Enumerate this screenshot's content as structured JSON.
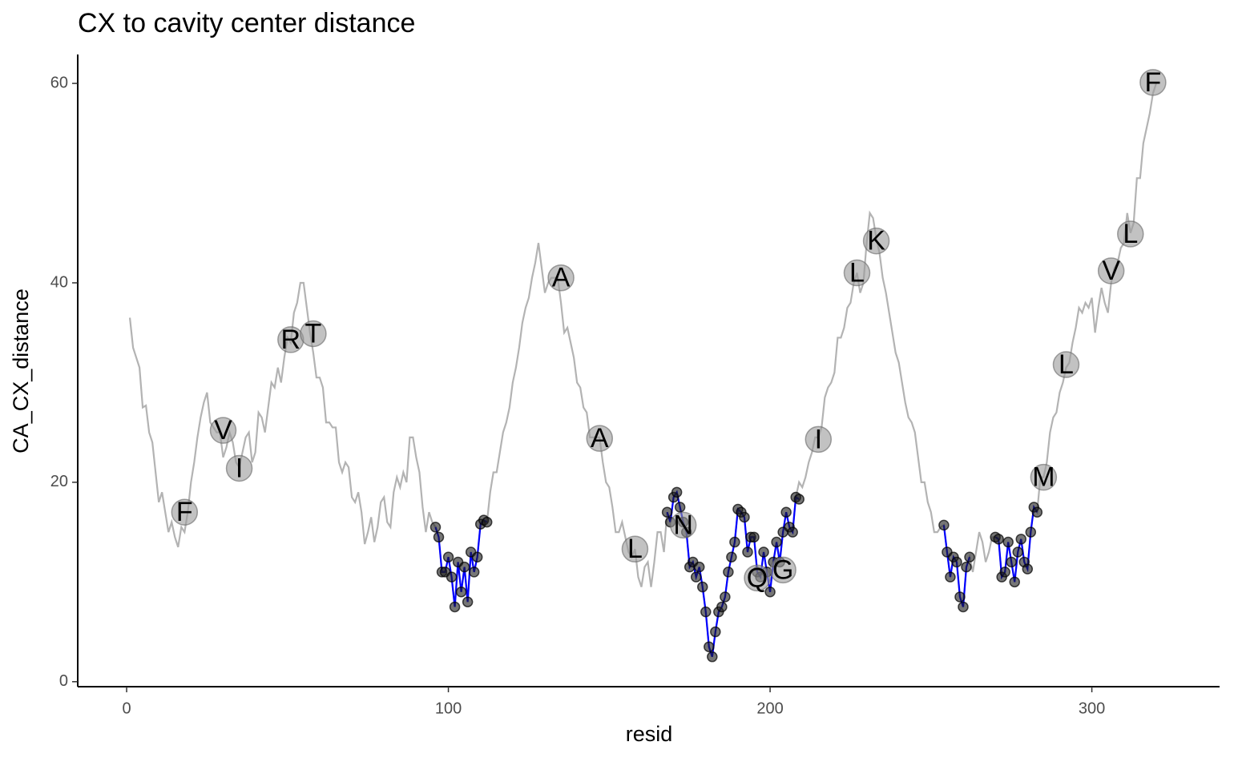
{
  "chart_data": {
    "type": "line",
    "title": "CX to cavity center distance",
    "x_label": "resid",
    "y_label": "CA_CX_distance",
    "xlim": [
      -15.2,
      339.7
    ],
    "ylim": [
      -0.5,
      62.9
    ],
    "xticks": [
      0,
      100,
      200,
      300
    ],
    "yticks": [
      0,
      20,
      40,
      60
    ],
    "grid": false,
    "series": [
      {
        "color": "#b3b3b3",
        "x": [
          1,
          2,
          3,
          4,
          5,
          6,
          7,
          8,
          9,
          10,
          11,
          12,
          13,
          14,
          15,
          16,
          17,
          18,
          19,
          20,
          21,
          22,
          23,
          24,
          25,
          26,
          27,
          28,
          29,
          30,
          31,
          32,
          33,
          34,
          35,
          36,
          37,
          38,
          39,
          40,
          41,
          42,
          43,
          44,
          45,
          46,
          47,
          48,
          49,
          50,
          51,
          52,
          53,
          54,
          55,
          56,
          57,
          58,
          59,
          60,
          61,
          62,
          63,
          64,
          65,
          66,
          67,
          68,
          69,
          70,
          71,
          72,
          73,
          74,
          75,
          76,
          77,
          78,
          79,
          80,
          81,
          82,
          83,
          84,
          85,
          86,
          87,
          88,
          89,
          90,
          91,
          92,
          93,
          94,
          95,
          96,
          97,
          98,
          99,
          100,
          101,
          102,
          103,
          104,
          105,
          106,
          107,
          108,
          109,
          110,
          111,
          112,
          113,
          114,
          115,
          116,
          117,
          118,
          119,
          120,
          121,
          122,
          123,
          124,
          125,
          126,
          127,
          128,
          129,
          130,
          131,
          132,
          133,
          134,
          135,
          136,
          137,
          138,
          139,
          140,
          141,
          142,
          143,
          144,
          145,
          146,
          147,
          148,
          149,
          150,
          151,
          152,
          153,
          154,
          155,
          156,
          157,
          158,
          159,
          160,
          161,
          162,
          163,
          164,
          165,
          166,
          167,
          168,
          169,
          170,
          171,
          172,
          173,
          174,
          175,
          176,
          177,
          178,
          179,
          180,
          181,
          182,
          183,
          184,
          185,
          186,
          187,
          188,
          189,
          190,
          191,
          192,
          193,
          194,
          195,
          196,
          197,
          198,
          199,
          200,
          201,
          202,
          203,
          204,
          205,
          206,
          207,
          208,
          209,
          210,
          211,
          212,
          213,
          214,
          215,
          216,
          217,
          218,
          219,
          220,
          221,
          222,
          223,
          224,
          225,
          226,
          227,
          228,
          229,
          230,
          231,
          232,
          233,
          234,
          235,
          236,
          237,
          238,
          239,
          240,
          241,
          242,
          243,
          244,
          245,
          246,
          247,
          248,
          249,
          250,
          251,
          252,
          253,
          254,
          255,
          256,
          257,
          258,
          259,
          260,
          261,
          262,
          263,
          264,
          265,
          266,
          267,
          268,
          269,
          270,
          271,
          272,
          273,
          274,
          275,
          276,
          277,
          278,
          279,
          280,
          281,
          282,
          283,
          284,
          285,
          286,
          287,
          288,
          289,
          290,
          291,
          292,
          293,
          294,
          295,
          296,
          297,
          298,
          299,
          300,
          301,
          302,
          303,
          304,
          305,
          306,
          307,
          308,
          309,
          310,
          311,
          312,
          313,
          314,
          315,
          316,
          317,
          318,
          319,
          320
        ],
        "values": [
          36.5,
          33.5,
          32.5,
          31.5,
          27.5,
          27.7,
          25,
          24,
          21,
          18,
          19,
          17,
          15,
          16,
          14.5,
          13.5,
          15.5,
          15,
          17,
          20,
          22,
          24.5,
          26.5,
          28,
          29,
          26,
          25.5,
          25,
          25,
          22.5,
          23.5,
          25,
          24,
          22,
          21.5,
          23,
          24.5,
          25,
          22,
          23,
          27,
          26.5,
          25,
          27.5,
          30,
          29.5,
          31.5,
          30,
          32.5,
          34.5,
          34,
          37,
          38,
          40,
          40,
          37.5,
          35,
          33,
          30.5,
          30.5,
          29.5,
          26,
          26,
          25.5,
          25.5,
          22,
          21,
          22,
          21.5,
          18.5,
          18,
          19,
          17,
          13.8,
          15,
          16.5,
          14,
          15.5,
          18,
          18.5,
          16,
          15.5,
          19,
          20.5,
          19.5,
          21,
          20,
          24.5,
          24.5,
          22.5,
          21,
          17.5,
          15,
          17,
          16,
          15.5,
          14.5,
          11,
          11,
          12.5,
          10.5,
          7.5,
          12,
          9,
          11.5,
          8,
          13,
          11,
          12.5,
          15.8,
          16.2,
          16,
          19,
          21,
          21,
          23,
          25,
          26,
          27.5,
          30,
          31.5,
          33.5,
          36,
          37.5,
          38.5,
          40.5,
          42,
          44,
          41.5,
          39,
          40,
          40.5,
          40.5,
          40.5,
          38,
          35,
          35.5,
          34,
          32.5,
          30,
          29.5,
          27.5,
          27,
          24.5,
          24.5,
          24.5,
          24.5,
          22,
          20,
          19.5,
          17.5,
          15,
          15,
          16,
          14.5,
          13,
          12.5,
          13.3,
          10.5,
          9.5,
          11.5,
          12,
          9.5,
          12,
          15,
          15,
          13,
          17,
          16,
          18.5,
          19,
          17.5,
          16,
          15,
          11.5,
          12,
          10.5,
          11.5,
          9.5,
          7,
          3.5,
          2.5,
          5,
          7,
          7.5,
          8.5,
          11,
          12.5,
          14,
          17.3,
          17,
          16.5,
          13,
          14.5,
          14.5,
          11,
          10.5,
          13,
          11,
          9,
          12,
          14,
          12,
          15,
          17,
          15.5,
          15,
          18.5,
          20,
          19.5,
          20.5,
          22,
          23,
          24.5,
          24.5,
          25.5,
          28.5,
          29.5,
          30,
          31,
          34.5,
          34.5,
          35.5,
          37.5,
          38,
          40,
          41,
          39,
          40,
          44,
          47,
          46.5,
          44.5,
          43,
          40.5,
          39,
          37,
          35,
          33,
          32,
          30,
          28,
          26.5,
          26,
          25,
          22.5,
          20,
          20,
          18,
          17,
          15,
          15,
          15.5,
          15.7,
          13,
          10.5,
          12.5,
          12,
          8.5,
          7.5,
          11.5,
          12.5,
          11,
          13,
          15,
          14,
          12,
          13,
          14.5,
          14.5,
          14.3,
          10.5,
          11,
          14,
          12,
          10,
          13,
          14.3,
          12,
          11.3,
          15,
          17.5,
          17,
          20.5,
          20.5,
          22,
          25,
          26.5,
          27,
          29,
          30,
          31.5,
          32,
          34,
          35.5,
          37.5,
          37,
          38,
          37.5,
          38.5,
          35,
          37.5,
          39.5,
          38,
          37,
          40,
          41.5,
          42,
          43.5,
          44,
          47,
          45,
          46,
          50.5,
          50.5,
          54,
          55.5,
          57,
          59,
          60
        ]
      },
      {
        "color": "#0000ff",
        "point_color": "#1a1a1a",
        "x": [
          96,
          97,
          98,
          99,
          100,
          101,
          102,
          103,
          104,
          105,
          106,
          107,
          108,
          109,
          110,
          111,
          112,
          113,
          168,
          169,
          170,
          171,
          172,
          173,
          174,
          175,
          176,
          177,
          178,
          179,
          180,
          181,
          182,
          183,
          184,
          185,
          186,
          187,
          188,
          189,
          190,
          191,
          192,
          193,
          194,
          195,
          196,
          197,
          198,
          199,
          200,
          201,
          202,
          203,
          204,
          205,
          206,
          207,
          208,
          209,
          210,
          254,
          255,
          256,
          257,
          258,
          259,
          260,
          261,
          262,
          263,
          270,
          271,
          272,
          273,
          274,
          275,
          276,
          277,
          278,
          279,
          280,
          281,
          282,
          283
        ],
        "values": [
          15.5,
          14.5,
          11,
          11,
          12.5,
          10.5,
          7.5,
          12,
          9,
          11.5,
          8,
          13,
          11,
          12.5,
          15.8,
          16.2,
          16,
          null,
          17,
          16,
          18.5,
          19,
          17.5,
          16,
          15,
          11.5,
          12,
          10.5,
          11.5,
          9.5,
          7,
          3.5,
          2.5,
          5,
          7,
          7.5,
          8.5,
          11,
          12.5,
          14,
          17.3,
          17,
          16.5,
          13,
          14.5,
          14.5,
          11,
          10.5,
          13,
          11,
          9,
          12,
          14,
          12,
          15,
          17,
          15.5,
          15,
          18.5,
          18.3,
          null,
          15.7,
          13,
          10.5,
          12.5,
          12,
          8.5,
          7.5,
          11.5,
          12.5,
          null,
          14.5,
          14.3,
          10.5,
          11,
          14,
          12,
          10,
          13,
          14.3,
          12,
          11.3,
          15,
          17.5,
          17
        ]
      }
    ],
    "annotations": [
      {
        "x": 18,
        "y": 17,
        "text": "F"
      },
      {
        "x": 30,
        "y": 25.2,
        "text": "V"
      },
      {
        "x": 35,
        "y": 21.4,
        "text": "I"
      },
      {
        "x": 51,
        "y": 34.3,
        "text": "R"
      },
      {
        "x": 58,
        "y": 34.9,
        "text": "T"
      },
      {
        "x": 135,
        "y": 40.5,
        "text": "A"
      },
      {
        "x": 147,
        "y": 24.4,
        "text": "A"
      },
      {
        "x": 158,
        "y": 13.3,
        "text": "L"
      },
      {
        "x": 173,
        "y": 15.7,
        "text": "N"
      },
      {
        "x": 196,
        "y": 10.4,
        "text": "Q"
      },
      {
        "x": 204,
        "y": 11.2,
        "text": "G"
      },
      {
        "x": 215,
        "y": 24.3,
        "text": "I"
      },
      {
        "x": 227,
        "y": 41,
        "text": "L"
      },
      {
        "x": 233,
        "y": 44.2,
        "text": "K"
      },
      {
        "x": 285,
        "y": 20.5,
        "text": "M"
      },
      {
        "x": 292,
        "y": 31.8,
        "text": "L"
      },
      {
        "x": 306,
        "y": 41.2,
        "text": "V"
      },
      {
        "x": 312,
        "y": 44.9,
        "text": "L"
      },
      {
        "x": 319,
        "y": 60.1,
        "text": "F"
      }
    ],
    "annotation_color": "#999999"
  }
}
